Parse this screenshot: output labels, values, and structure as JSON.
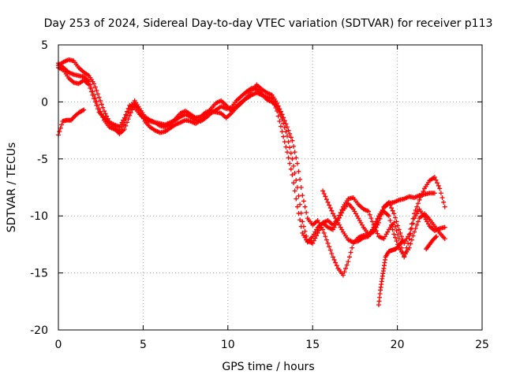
{
  "chart_data": {
    "type": "scatter",
    "title": "Day 253 of 2024, Sidereal Day-to-day VTEC variation (SDTVAR) for receiver p113",
    "xlabel": "GPS time / hours",
    "ylabel": "SDTVAR / TECUs",
    "xlim": [
      0,
      25
    ],
    "ylim": [
      -20,
      5
    ],
    "xticks": [
      0,
      5,
      10,
      15,
      20,
      25
    ],
    "yticks": [
      -20,
      -15,
      -10,
      -5,
      0,
      5
    ],
    "grid": true,
    "marker": "+",
    "color": "#ff0000",
    "series": [
      {
        "x": [
          0.0,
          0.3,
          0.6,
          0.9,
          1.2,
          1.5,
          1.8,
          2.1,
          2.4,
          2.7,
          3.0,
          3.3,
          3.6,
          3.9,
          4.2,
          4.5,
          4.8,
          5.1,
          5.4,
          5.7,
          6.0,
          6.3,
          6.6,
          6.9,
          7.2,
          7.5,
          7.8,
          8.1,
          8.4,
          8.7,
          9.0,
          9.3,
          9.6,
          9.9,
          10.2,
          10.5,
          10.8,
          11.1,
          11.4,
          11.7,
          12.0,
          12.3,
          12.6,
          12.9,
          13.2,
          13.5,
          13.8,
          14.1,
          14.4,
          14.7,
          15.0,
          15.3,
          15.6,
          15.9,
          16.2,
          16.5,
          16.8,
          17.1,
          17.4,
          17.7,
          18.0,
          18.3,
          18.6,
          18.9,
          19.2,
          19.5,
          19.8,
          20.1,
          20.4,
          20.7,
          21.0,
          21.3,
          21.6,
          21.9,
          22.2,
          22.5,
          22.8
        ],
        "y": [
          3.4,
          3.0,
          2.6,
          2.4,
          2.3,
          2.2,
          1.8,
          0.6,
          -0.6,
          -1.6,
          -2.2,
          -2.4,
          -2.6,
          -1.8,
          -0.6,
          0.1,
          -0.6,
          -1.3,
          -1.6,
          -1.8,
          -1.9,
          -2.0,
          -1.8,
          -1.6,
          -1.3,
          -1.1,
          -1.3,
          -1.6,
          -1.7,
          -1.4,
          -1.0,
          -0.7,
          -0.4,
          -0.6,
          -0.5,
          0.1,
          0.5,
          0.9,
          1.2,
          1.1,
          0.7,
          0.2,
          0.0,
          -0.4,
          -1.5,
          -3.0,
          -5.0,
          -7.5,
          -10.5,
          -12.2,
          -12.4,
          -11.5,
          -10.6,
          -10.4,
          -10.8,
          -10.2,
          -9.2,
          -8.5,
          -8.4,
          -9.0,
          -9.4,
          -9.6,
          -10.8,
          -11.8,
          -12.0,
          -11.2,
          -10.6,
          -12.0,
          -13.6,
          -12.0,
          -10.2,
          -9.4,
          -10.1,
          -10.9,
          -11.3,
          -11.1,
          -11.0
        ]
      },
      {
        "x": [
          0.0,
          0.3,
          0.6,
          0.9,
          1.2,
          1.5,
          1.8,
          2.1,
          2.4,
          2.7,
          3.0,
          3.3,
          3.6,
          3.9,
          4.2,
          4.5,
          4.8,
          5.1,
          5.4,
          5.7,
          6.0,
          6.3,
          6.6,
          6.9,
          7.2,
          7.5,
          7.8,
          8.1,
          8.4,
          8.7,
          9.0,
          9.3,
          9.6,
          9.9,
          10.2,
          10.5,
          10.8,
          11.1,
          11.4,
          11.7,
          12.0,
          12.3,
          12.6,
          12.9,
          13.2,
          13.5,
          13.8,
          14.1,
          14.4,
          14.7,
          15.0,
          15.3,
          15.6,
          15.9,
          16.2,
          16.5,
          16.8,
          17.1,
          17.4,
          17.7,
          18.0,
          18.3,
          18.6,
          18.9,
          19.2,
          19.5,
          19.8,
          20.1,
          20.4,
          20.7,
          21.0,
          21.3,
          21.6,
          21.9,
          22.2,
          22.5,
          22.8
        ],
        "y": [
          3.2,
          3.5,
          3.7,
          3.6,
          3.0,
          2.6,
          2.3,
          1.6,
          0.4,
          -0.8,
          -1.7,
          -2.3,
          -2.8,
          -2.4,
          -1.2,
          -0.2,
          -0.8,
          -1.7,
          -2.2,
          -2.5,
          -2.7,
          -2.6,
          -2.3,
          -2.0,
          -1.8,
          -1.6,
          -1.7,
          -1.9,
          -1.6,
          -1.1,
          -0.6,
          -0.1,
          0.1,
          -0.3,
          -0.8,
          -0.4,
          0.0,
          0.3,
          0.6,
          0.8,
          0.6,
          0.4,
          0.3,
          -0.8,
          -2.6,
          -4.4,
          -6.4,
          -9.2,
          -11.5,
          -12.3,
          -11.8,
          -11.0,
          -10.6,
          -11.0,
          -11.2,
          -10.4,
          -9.5,
          -8.9,
          -9.4,
          -10.2,
          -11.0,
          -11.6,
          -11.2,
          -10.2,
          -9.6,
          -10.0,
          -11.6,
          -12.8,
          -13.5,
          -12.8,
          -11.4,
          -10.2,
          -9.8,
          -10.3,
          -10.9,
          -11.5,
          -12.0
        ]
      },
      {
        "x": [
          0.0,
          0.3,
          0.6,
          0.9,
          1.2,
          1.5,
          1.8,
          2.1,
          2.4,
          2.7,
          3.0,
          3.3,
          3.6,
          3.9,
          4.2,
          4.5,
          4.8,
          5.1,
          5.4,
          5.7,
          6.0,
          6.3,
          6.6,
          6.9,
          7.2,
          7.5,
          7.8,
          8.1,
          8.4,
          8.7,
          9.0,
          9.3,
          9.6,
          9.9,
          10.2,
          10.5,
          10.8,
          11.1,
          11.4,
          11.7,
          12.0,
          12.3,
          12.6,
          12.9,
          13.2,
          13.5,
          13.8,
          14.1,
          14.4,
          14.7,
          15.0,
          15.3,
          15.6,
          15.9,
          16.2,
          16.5,
          16.8,
          17.1,
          17.4,
          17.7,
          18.0,
          18.3,
          18.6,
          18.9,
          19.2,
          19.5,
          19.8,
          20.1,
          20.4,
          20.7,
          21.0,
          21.3,
          21.6,
          21.9,
          22.2,
          22.5,
          22.8
        ],
        "y": [
          3.0,
          2.8,
          2.1,
          1.7,
          1.6,
          1.9,
          1.5,
          0.3,
          -0.9,
          -1.4,
          -1.8,
          -2.0,
          -2.2,
          -1.4,
          -0.3,
          -0.5,
          -1.1,
          -1.5,
          -1.7,
          -1.8,
          -2.1,
          -2.2,
          -2.0,
          -1.5,
          -1.0,
          -0.8,
          -1.1,
          -1.4,
          -1.3,
          -0.9,
          -0.8,
          -0.9,
          -1.0,
          -1.4,
          -1.0,
          -0.5,
          -0.1,
          0.4,
          1.0,
          1.5,
          1.1,
          0.8,
          0.6,
          -0.1,
          -1.1,
          -2.2,
          -3.4,
          -5.4,
          -8.2,
          -10.2,
          -10.8,
          -10.4,
          -11.2,
          -12.4,
          -13.6,
          -14.6,
          -15.2,
          -14.0,
          -12.4,
          -11.9,
          -11.7,
          -11.7,
          -11.4,
          -10.6,
          -9.2,
          -8.8,
          -9.8,
          -11.2,
          -12.4,
          -11.6,
          -9.8,
          -8.6,
          -7.6,
          -6.9,
          -6.6,
          -7.6,
          -9.2
        ]
      },
      {
        "x": [
          0.0,
          0.25,
          0.5,
          0.75,
          1.0,
          1.25,
          1.5
        ],
        "y": [
          -2.9,
          -1.7,
          -1.6,
          -1.6,
          -1.2,
          -0.9,
          -0.7
        ]
      },
      {
        "x": [
          15.6,
          15.9,
          16.2,
          16.5,
          16.8,
          17.1,
          17.4,
          17.7,
          18.0,
          18.3,
          18.6,
          18.9,
          19.2,
          19.5,
          19.8,
          20.1,
          20.4,
          20.7,
          21.0,
          21.3,
          21.6,
          21.9,
          22.2
        ],
        "y": [
          -7.8,
          -8.8,
          -9.8,
          -10.6,
          -11.4,
          -12.1,
          -12.3,
          -12.2,
          -11.9,
          -11.8,
          -11.0,
          -10.0,
          -9.3,
          -8.9,
          -8.8,
          -8.6,
          -8.5,
          -8.3,
          -8.4,
          -8.2,
          -8.1,
          -8.0,
          -8.0
        ]
      },
      {
        "x": [
          18.9,
          19.0,
          19.1,
          19.2,
          19.3,
          19.5,
          19.7,
          19.9,
          20.1,
          20.3
        ],
        "y": [
          -17.8,
          -16.5,
          -15.5,
          -14.6,
          -13.6,
          -13.1,
          -13.0,
          -12.9,
          -12.6,
          -12.2
        ]
      },
      {
        "x": [
          21.7,
          21.9,
          22.1,
          22.3
        ],
        "y": [
          -12.9,
          -12.5,
          -12.1,
          -11.8
        ]
      }
    ]
  }
}
